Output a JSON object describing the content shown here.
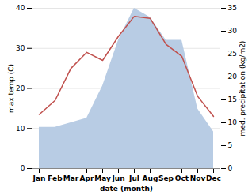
{
  "chart_data": {
    "type": "line",
    "xlabel": "date (month)",
    "ylabel": "max temp (C)",
    "y2label": "med. precipitation (kg/m2)",
    "categories": [
      "Jan",
      "Feb",
      "Mar",
      "Apr",
      "May",
      "Jun",
      "Jul",
      "Aug",
      "Sep",
      "Oct",
      "Nov",
      "Dec"
    ],
    "series": [
      {
        "type": "area",
        "axis": "y2",
        "color": "#b8cce4",
        "values": [
          9,
          9,
          10,
          11,
          18,
          28,
          35,
          33,
          28,
          28,
          13,
          8
        ]
      },
      {
        "type": "line",
        "color": "#c0504d",
        "values": [
          13.5,
          17,
          25,
          29,
          27,
          33,
          38,
          37.5,
          31,
          28,
          18,
          13
        ]
      }
    ],
    "ylim": [
      0,
      40
    ],
    "yticks": [
      0,
      10,
      20,
      30,
      40
    ],
    "y2lim": [
      0,
      35
    ],
    "y2ticks": [
      0,
      5,
      10,
      15,
      20,
      25,
      30,
      35
    ],
    "grid": true
  }
}
